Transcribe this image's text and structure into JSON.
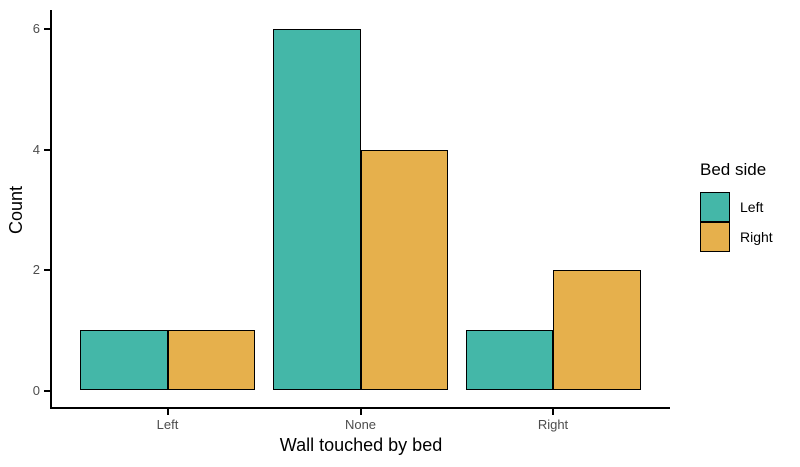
{
  "chart_data": {
    "type": "bar",
    "title": "",
    "xlabel": "Wall touched by bed",
    "ylabel": "Count",
    "categories": [
      "Left",
      "None",
      "Right"
    ],
    "series": [
      {
        "name": "Left",
        "color": "#44b7a8",
        "values": [
          1,
          6,
          1
        ]
      },
      {
        "name": "Right",
        "color": "#e6b04c",
        "values": [
          1,
          4,
          2
        ]
      }
    ],
    "ylim": [
      0,
      6
    ],
    "yticks": [
      0,
      2,
      4,
      6
    ],
    "grid": false,
    "bar_outline_color": "#000000",
    "legend": {
      "title": "Bed side",
      "position": "right",
      "entries": [
        "Left",
        "Right"
      ]
    }
  },
  "axis_style": {
    "tick_label_color": "#4d4d4d",
    "axis_line_color": "#000000",
    "title_color": "#000000"
  }
}
